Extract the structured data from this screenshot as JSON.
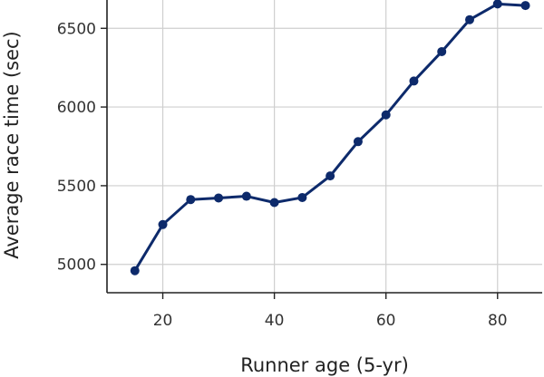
{
  "chart_data": {
    "type": "line",
    "xlabel": "Runner age (5-yr)",
    "ylabel": "Average race time (sec)",
    "xlim": [
      10,
      88
    ],
    "ylim": [
      4820,
      6680
    ],
    "xticks": [
      20,
      40,
      60,
      80
    ],
    "yticks": [
      5000,
      5500,
      6000,
      6500
    ],
    "xtick_labels": [
      "20",
      "40",
      "60",
      "80"
    ],
    "ytick_labels": [
      "5000",
      "5500",
      "6000",
      "6500"
    ],
    "grid": true,
    "series": [
      {
        "x": [
          15,
          20,
          25,
          30,
          35,
          40,
          45,
          50,
          55,
          60,
          65,
          70,
          75,
          80,
          85
        ],
        "values": [
          4960,
          5253,
          5412,
          5422,
          5433,
          5393,
          5425,
          5562,
          5780,
          5950,
          6165,
          6352,
          6555,
          6655,
          6645
        ],
        "color": "#0d2a6b"
      }
    ]
  }
}
